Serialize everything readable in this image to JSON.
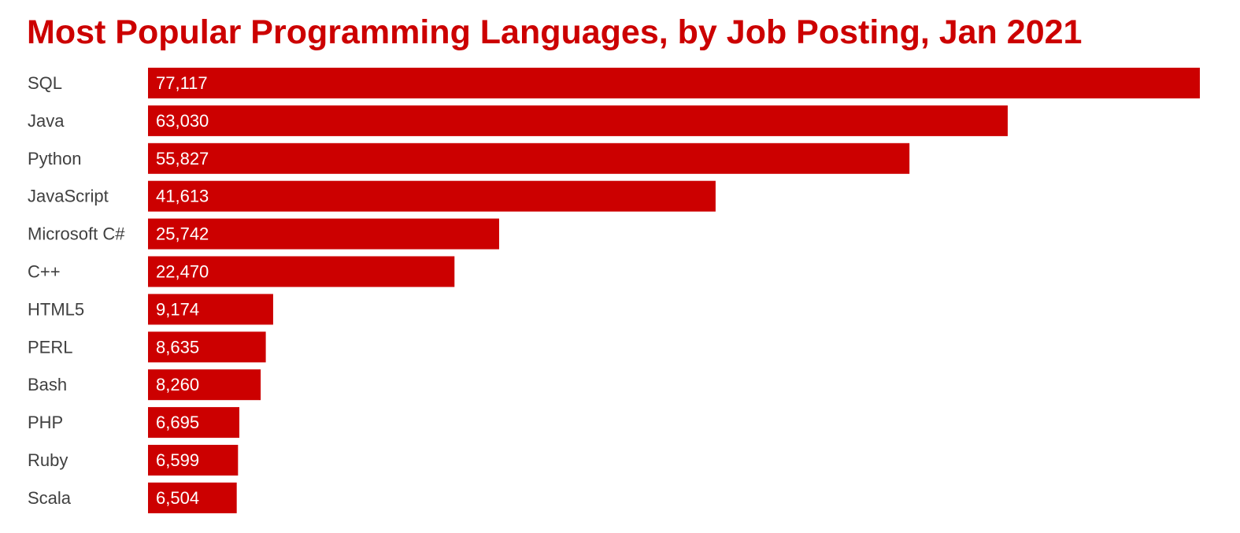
{
  "chart_data": {
    "type": "bar",
    "orientation": "horizontal",
    "title": "Most Popular Programming Languages, by Job Posting, Jan 2021",
    "categories": [
      "SQL",
      "Java",
      "Python",
      "JavaScript",
      "Microsoft C#",
      "C++",
      "HTML5",
      "PERL",
      "Bash",
      "PHP",
      "Ruby",
      "Scala"
    ],
    "values": [
      77117,
      63030,
      55827,
      41613,
      25742,
      22470,
      9174,
      8635,
      8260,
      6695,
      6599,
      6504
    ],
    "value_labels": [
      "77,117",
      "63,030",
      "55,827",
      "41,613",
      "25,742",
      "22,470",
      "9,174",
      "8,635",
      "8,260",
      "6,695",
      "6,599",
      "6,504"
    ],
    "xlabel": "",
    "ylabel": "",
    "xlim": [
      0,
      77117
    ],
    "grid": false,
    "legend": "none",
    "bar_color": "#cc0000",
    "title_color": "#cc0000",
    "label_color": "#404040",
    "value_label_color": "#ffffff"
  }
}
